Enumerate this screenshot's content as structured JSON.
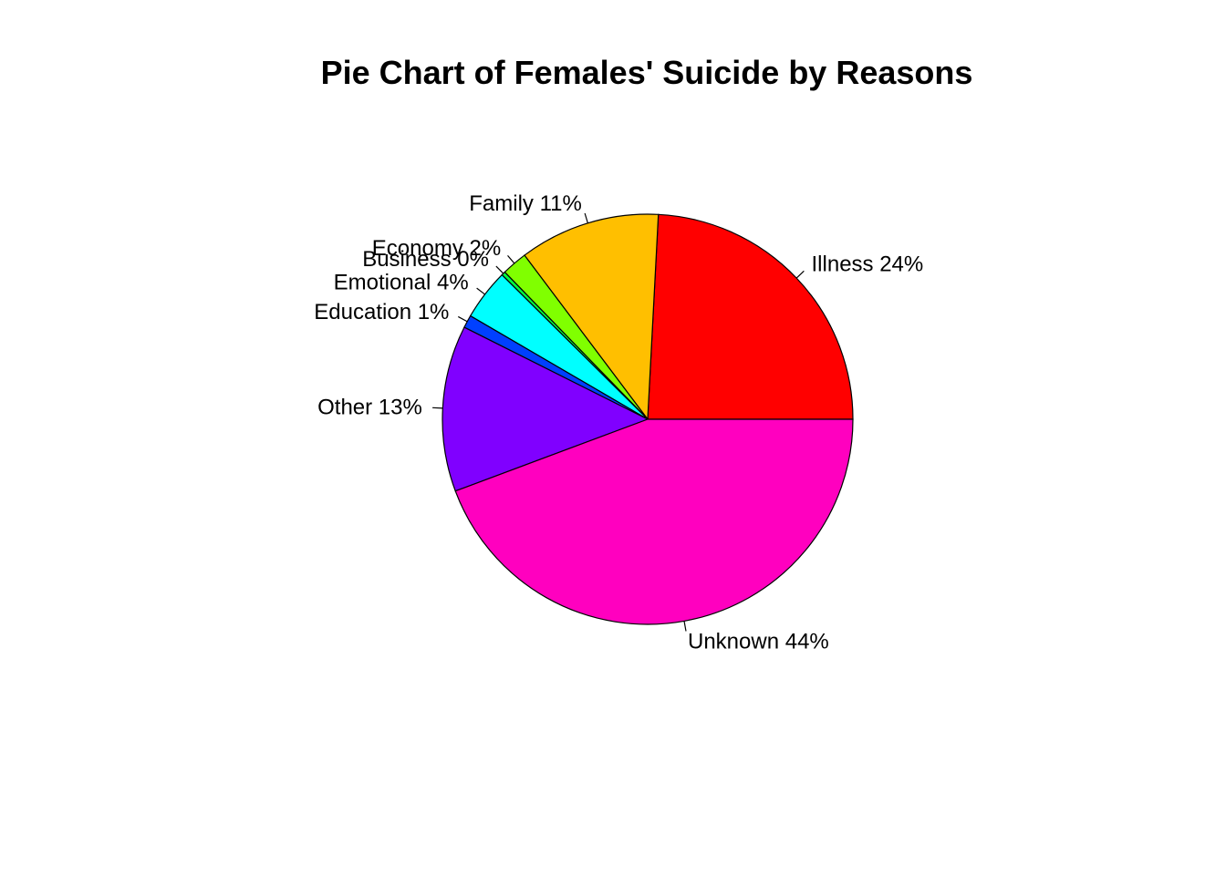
{
  "chart_data": {
    "type": "pie",
    "title": "Pie Chart of Females' Suicide by Reasons",
    "slices": [
      {
        "label": "Illness",
        "percent": 24,
        "display": "Illness 24%",
        "color": "#FF0000"
      },
      {
        "label": "Family",
        "percent": 11,
        "display": "Family 11%",
        "color": "#FFBF00"
      },
      {
        "label": "Economy",
        "percent": 2,
        "display": "Economy 2%",
        "color": "#80FF00"
      },
      {
        "label": "Business",
        "percent": 0,
        "display": "Business 0%",
        "color": "#00FF40"
      },
      {
        "label": "Emotional",
        "percent": 4,
        "display": "Emotional 4%",
        "color": "#00FFFF"
      },
      {
        "label": "Education",
        "percent": 1,
        "display": "Education 1%",
        "color": "#0040FF"
      },
      {
        "label": "Other",
        "percent": 13,
        "display": "Other 13%",
        "color": "#8000FF"
      },
      {
        "label": "Unknown",
        "percent": 44,
        "display": "Unknown 44%",
        "color": "#FF00BF"
      }
    ],
    "start_angle_deg": 0,
    "direction": "counterclockwise"
  }
}
